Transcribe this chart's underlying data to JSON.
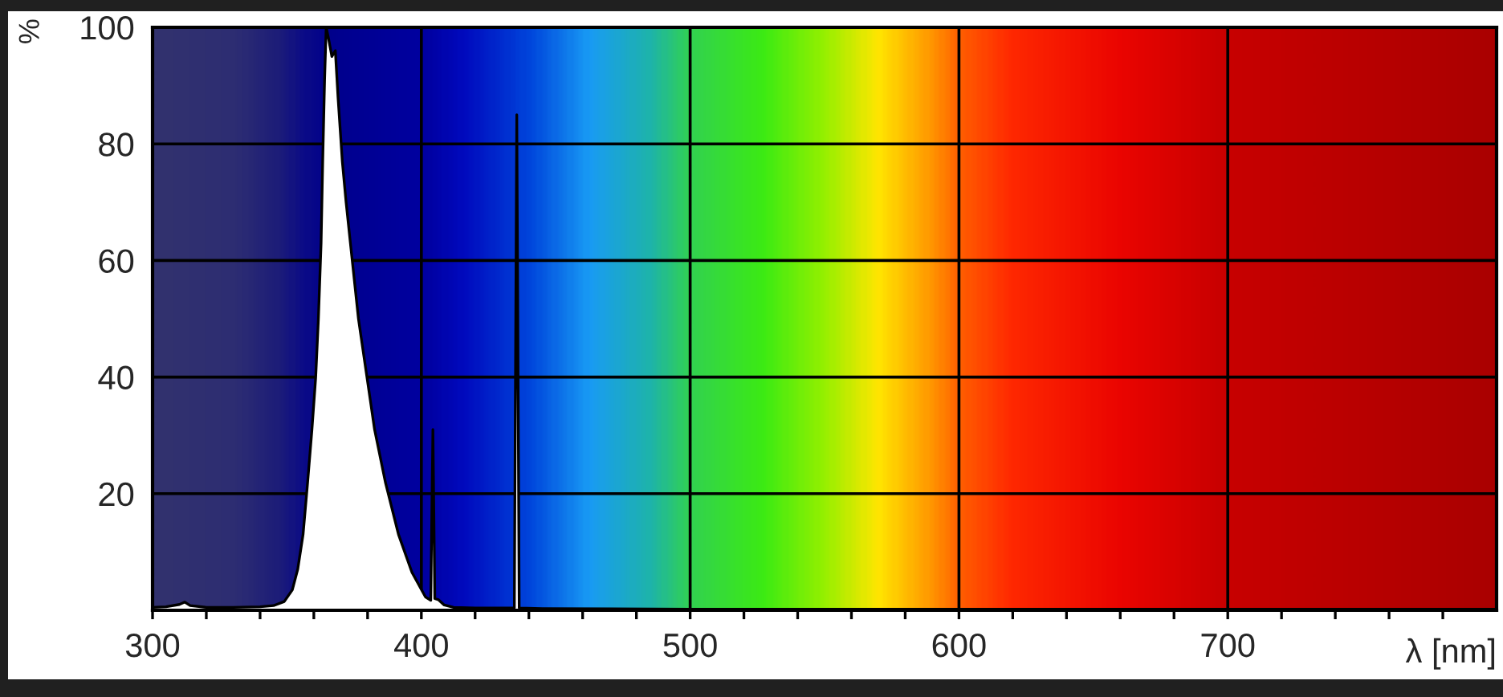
{
  "chart_data": {
    "type": "area",
    "x": [
      300,
      305,
      310,
      312,
      314,
      320,
      330,
      340,
      345,
      349,
      352,
      354,
      356,
      357.7,
      359.3,
      360.7,
      361.7,
      362.7,
      363.3,
      364,
      364.6,
      365.5,
      366.7,
      368,
      369,
      370.6,
      372,
      373.6,
      376.6,
      379.6,
      382.6,
      386.6,
      391.5,
      396.5,
      401.5,
      403.5,
      404.3,
      405,
      406.4,
      408.5,
      412,
      420,
      434.6,
      435.5,
      436.4,
      445,
      500,
      600,
      700,
      800
    ],
    "series": [
      {
        "color": "#ffffff",
        "values": [
          0.5,
          0.6,
          1.0,
          1.4,
          0.8,
          0.5,
          0.5,
          0.6,
          0.8,
          1.5,
          3.5,
          7,
          13,
          22,
          31,
          40,
          50,
          63,
          77,
          91,
          100,
          98,
          95,
          96,
          88,
          77,
          70,
          63,
          50,
          40.5,
          31,
          22,
          13,
          6.5,
          2.3,
          1.7,
          31,
          2,
          1.8,
          0.9,
          0.5,
          0.4,
          0.4,
          85,
          0.4,
          0.3,
          0.2,
          0.2,
          0.2,
          0.2
        ]
      }
    ],
    "xlabel": "λ [nm]",
    "ylabel": "%",
    "xlim": [
      300,
      800
    ],
    "ylim": [
      0,
      100
    ],
    "xticks": [
      300,
      {
        "value": 320,
        "label": null
      },
      {
        "value": 340,
        "label": null
      },
      {
        "value": 360,
        "label": null
      },
      {
        "value": 380,
        "label": null
      },
      400,
      {
        "value": 420,
        "label": null
      },
      {
        "value": 440,
        "label": null
      },
      {
        "value": 460,
        "label": null
      },
      {
        "value": 480,
        "label": null
      },
      500,
      {
        "value": 520,
        "label": null
      },
      {
        "value": 540,
        "label": null
      },
      {
        "value": 560,
        "label": null
      },
      {
        "value": 580,
        "label": null
      },
      600,
      {
        "value": 620,
        "label": null
      },
      {
        "value": 640,
        "label": null
      },
      {
        "value": 660,
        "label": null
      },
      {
        "value": 680,
        "label": null
      },
      700,
      {
        "value": 720,
        "label": null
      },
      {
        "value": 740,
        "label": null
      },
      {
        "value": 760,
        "label": null
      },
      {
        "value": 780,
        "label": null
      }
    ],
    "yticks": [
      20,
      40,
      60,
      80,
      100
    ],
    "grid": true
  }
}
